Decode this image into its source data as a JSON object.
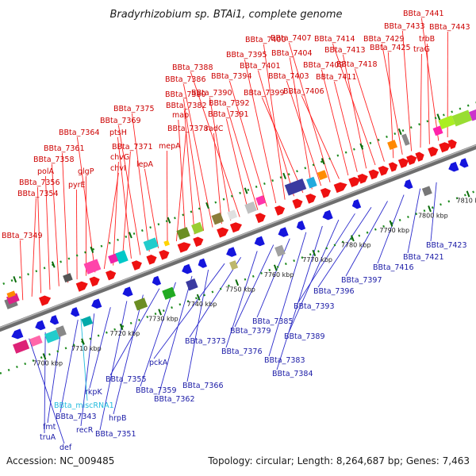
{
  "title": "Bradyrhizobium sp. BTAi1, complete genome",
  "accession": "Accession: NC_009485",
  "summary": "Topology: circular; Length: 8,264,687 bp; Genes: 7,463",
  "colors": {
    "forward_label": "#cc0000",
    "reverse_label": "#1a1aa6",
    "rna_label": "#22bbdd",
    "forward_feature": "#ee1111",
    "reverse_feature": "#1515dd",
    "backbone": "#8a8a8a",
    "tick": "#1d8a1d"
  },
  "ticks": [
    "7700 kbp",
    "7710 kbp",
    "7720 kbp",
    "7730 kbp",
    "7740 kbp",
    "7750 kbp",
    "7760 kbp",
    "7770 kbp",
    "7780 kbp",
    "7790 kbp",
    "7800 kbp",
    "7810 kbp"
  ],
  "forward_labels": [
    "BBta_7349",
    "BBta_7354",
    "BBta_7356",
    "polA",
    "BBta_7358",
    "BBta_7361",
    "pyrE",
    "glgP",
    "BBta_7364",
    "chvI",
    "chvG",
    "BBta_7371",
    "ptsH",
    "BBta_7369",
    "BBta_7375",
    "lepA",
    "mepA",
    "BBta_7378",
    "map",
    "BBta_7382",
    "BBta_7380",
    "BBta_7386",
    "radC",
    "BBta_7390",
    "BBta_7388",
    "BBta_7391",
    "BBta_7392",
    "BBta_7394",
    "BBta_7395",
    "BBta_7400",
    "BBta_7401",
    "BBta_7399",
    "BBta_7404",
    "BBta_7403",
    "BBta_7407",
    "BBta_7406",
    "BBta_7409",
    "BBta_7411",
    "BBta_7413",
    "BBta_7414",
    "BBta_7418",
    "BBta_7425",
    "BBta_7429",
    "BBta_7433",
    "traG",
    "trbB",
    "BBta_7441",
    "BBta_7443"
  ],
  "reverse_labels": [
    "def",
    "truA",
    "fmt",
    "BBta_7343",
    "recR",
    "rkpK",
    "BBta_7351",
    "hrpB",
    "BBta_7355",
    "BBta_7359",
    "BBta_7362",
    "BBta_7366",
    "pckA",
    "BBta_7373",
    "BBta_7376",
    "BBta_7379",
    "BBta_7385",
    "BBta_7383",
    "BBta_7384",
    "BBta_7389",
    "BBta_7393",
    "BBta_7396",
    "BBta_7397",
    "BBta_7416",
    "BBta_7421",
    "BBta_7423"
  ],
  "rna_labels": [
    "BBta_miscRNA1"
  ]
}
